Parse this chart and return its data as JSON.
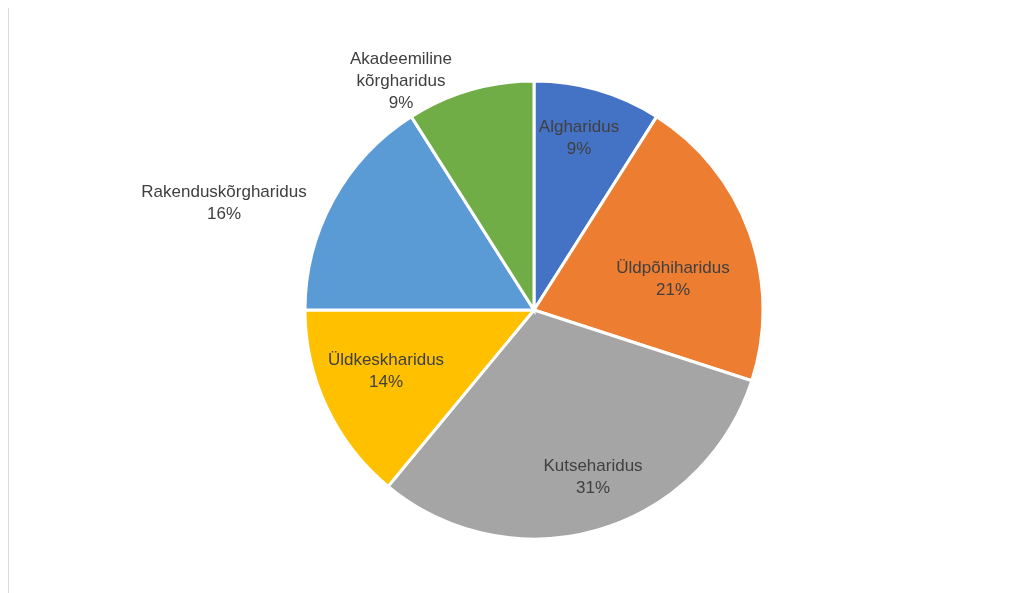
{
  "chart_data": {
    "type": "pie",
    "categories": [
      "Algharidus",
      "Üldpõhiharidus",
      "Kutseharidus",
      "Üldkeskharidus",
      "Rakenduskõrgharidus",
      "Akadeemiline kõrgharidus"
    ],
    "values": [
      9,
      21,
      31,
      14,
      16,
      9
    ],
    "value_labels": [
      "9%",
      "21%",
      "31%",
      "14%",
      "16%",
      "9%"
    ],
    "colors": [
      "#4472c4",
      "#ed7d31",
      "#a5a5a5",
      "#ffc000",
      "#5b9bd5",
      "#70ad47"
    ],
    "legend": false
  }
}
